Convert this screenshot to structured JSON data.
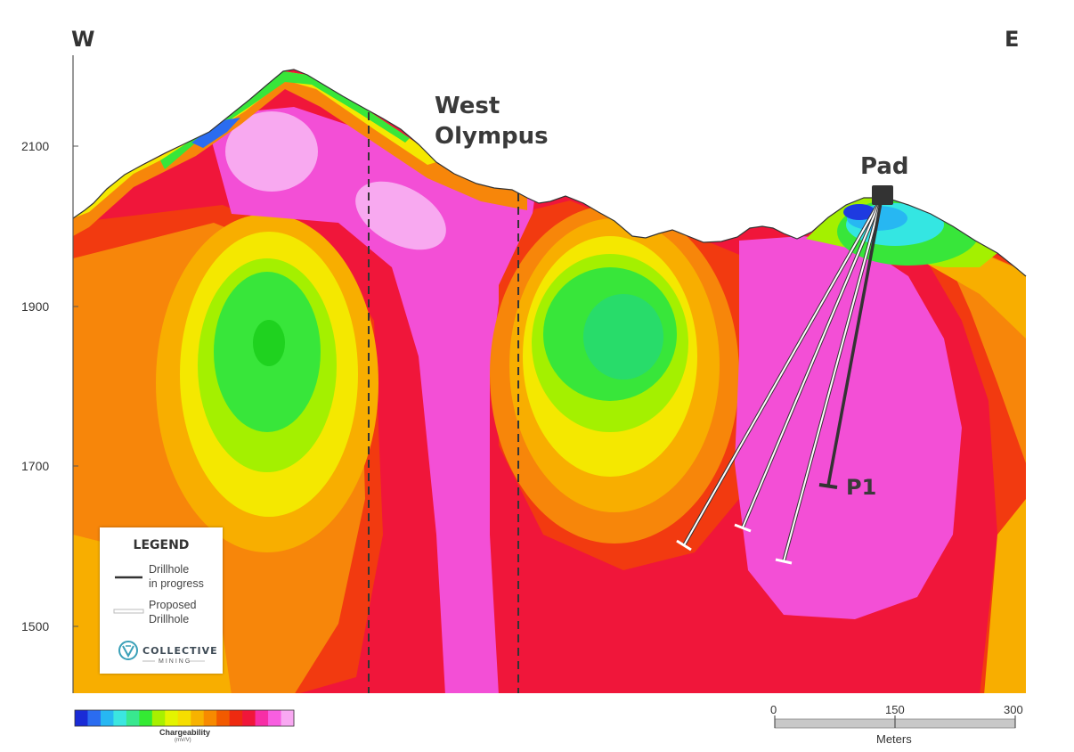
{
  "compass": {
    "west": "W",
    "east": "E"
  },
  "elevations": [
    "2100",
    "1900",
    "1700",
    "1500"
  ],
  "labels": {
    "west_olympus_line1": "West",
    "west_olympus_line2": "Olympus",
    "pad": "Pad",
    "p1": "P1"
  },
  "legend": {
    "title": "LEGEND",
    "drillhole_in_progress": [
      "Drillhole",
      "in progress"
    ],
    "proposed_drillhole": [
      "Proposed",
      "Drillhole"
    ],
    "brand_name": "COLLECTIVE",
    "brand_sub": "MINING"
  },
  "colorbar": {
    "label": "Chargeability",
    "unit": "(mV/V)",
    "colors": [
      "#1a2bd6",
      "#2b6cf0",
      "#27b7f2",
      "#3be6e0",
      "#38e88f",
      "#34ea33",
      "#a8f000",
      "#e4f400",
      "#f6de00",
      "#f7b200",
      "#f78a00",
      "#f25a00",
      "#ee2a10",
      "#f0163a",
      "#f72ea6",
      "#f85ee0",
      "#f9a8f2"
    ]
  },
  "scale_bar": {
    "ticks": [
      "0",
      "150",
      "300"
    ],
    "unit": "Meters"
  },
  "colors": {
    "pink_light": "#f8a9f0",
    "magenta": "#f34fd6",
    "crimson": "#f0163a",
    "red": "#f23a10",
    "orange": "#f7860a",
    "amber": "#f8ae00",
    "yellow": "#f4e800",
    "lime": "#a4f000",
    "green": "#38e63a",
    "cyan": "#34e6e2",
    "blue": "#1e3ae0",
    "drill_dark": "#333333",
    "drill_proposed": "#ffffff"
  }
}
